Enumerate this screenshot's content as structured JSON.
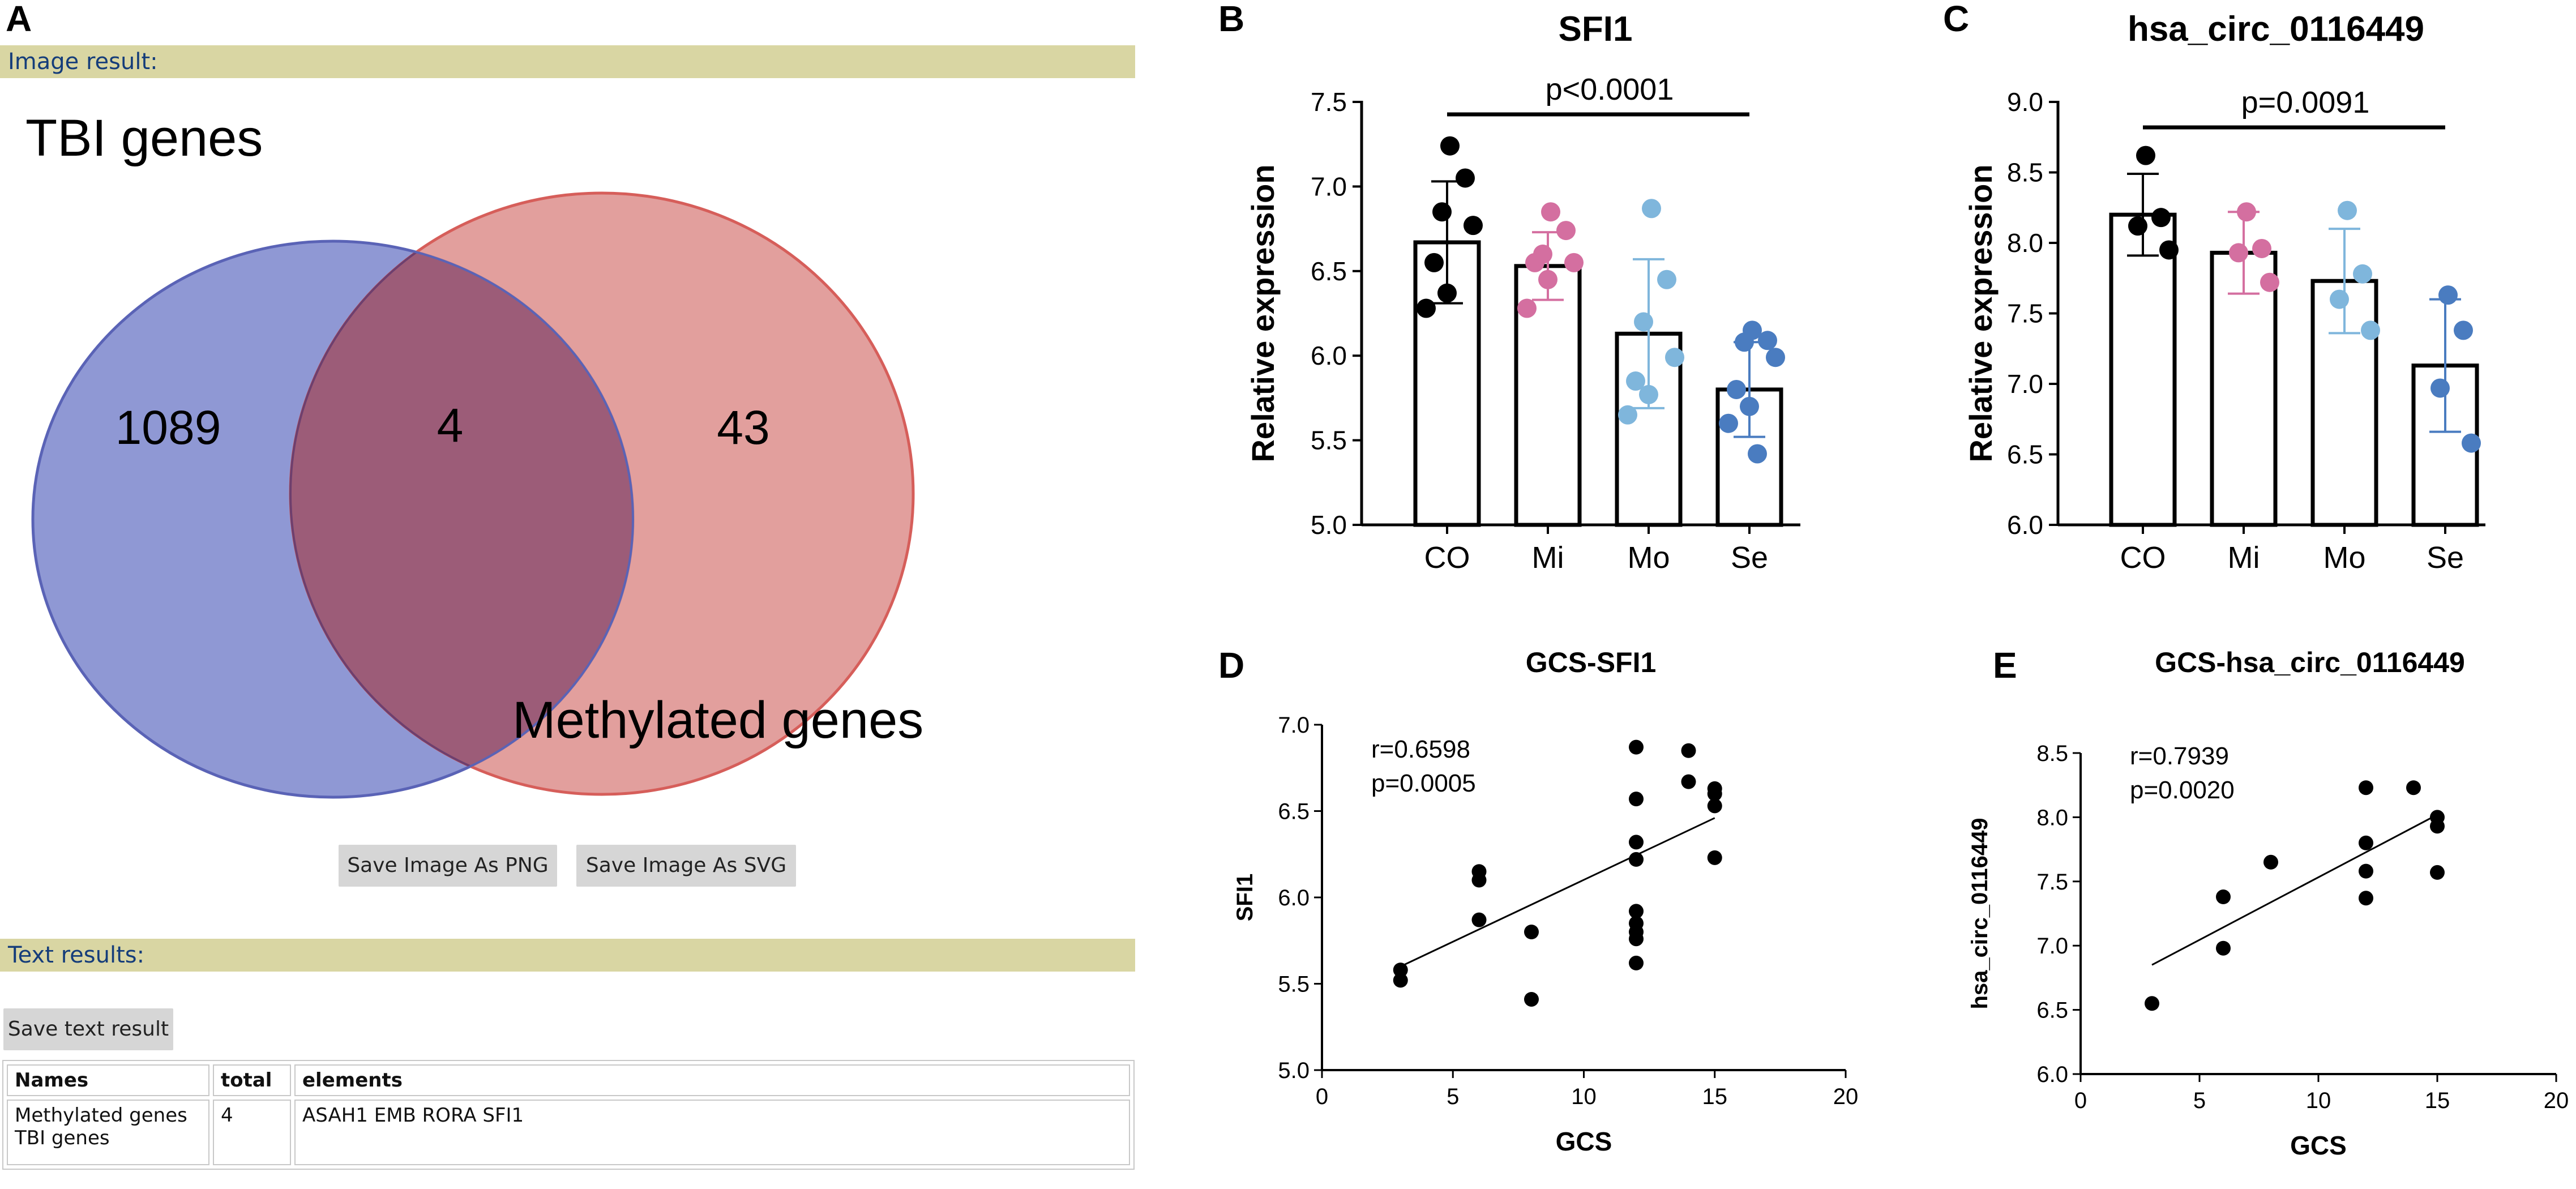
{
  "panel_labels": {
    "a": "A",
    "b": "B",
    "c": "C",
    "d": "D",
    "e": "E"
  },
  "venn": {
    "image_result_label": "Image result:",
    "set_a_label": "TBI genes",
    "set_b_label": "Methylated genes",
    "only_a": "1089",
    "both": "4",
    "only_b": "43",
    "colors": {
      "a": "#7b86cc",
      "b": "#dc8a88"
    },
    "save_png_label": "Save Image As PNG",
    "save_svg_label": "Save Image As SVG",
    "text_results_label": "Text results:",
    "save_text_label": "Save text result",
    "table": {
      "headers": [
        "Names",
        "total",
        "elements"
      ],
      "rows": [
        {
          "names_line1": "Methylated genes",
          "names_line2": "TBI genes",
          "total": "4",
          "elements": "ASAH1 EMB RORA SFI1"
        }
      ]
    }
  },
  "chart_data": [
    {
      "id": "B",
      "type": "bar",
      "title": "SFI1",
      "ylabel": "Relative expression",
      "xlabel": "",
      "categories": [
        "CO",
        "Mi",
        "Mo",
        "Se"
      ],
      "values": [
        6.67,
        6.53,
        6.13,
        5.8
      ],
      "errors": [
        0.36,
        0.2,
        0.44,
        0.28
      ],
      "points": [
        [
          7.24,
          7.05,
          6.85,
          6.77,
          6.55,
          6.37,
          6.28
        ],
        [
          6.85,
          6.74,
          6.6,
          6.55,
          6.55,
          6.45,
          6.28
        ],
        [
          6.87,
          6.45,
          6.2,
          5.99,
          5.85,
          5.77,
          5.65
        ],
        [
          6.15,
          6.09,
          6.08,
          5.99,
          5.8,
          5.7,
          5.6,
          5.42
        ]
      ],
      "point_colors": [
        "#000000",
        "#d46fa0",
        "#7fb6dc",
        "#4a7cc0"
      ],
      "ylim": [
        5.0,
        7.5
      ],
      "yticks": [
        "5.0",
        "5.5",
        "6.0",
        "6.5",
        "7.0",
        "7.5"
      ],
      "annotation": "p<0.0001"
    },
    {
      "id": "C",
      "type": "bar",
      "title": "hsa_circ_0116449",
      "ylabel": "Relative expression",
      "xlabel": "",
      "categories": [
        "CO",
        "Mi",
        "Mo",
        "Se"
      ],
      "values": [
        8.2,
        7.93,
        7.73,
        7.13
      ],
      "errors": [
        0.29,
        0.29,
        0.37,
        0.47
      ],
      "points": [
        [
          8.62,
          8.18,
          8.12,
          7.95
        ],
        [
          8.22,
          7.96,
          7.93,
          7.72
        ],
        [
          8.23,
          7.78,
          7.6,
          7.38
        ],
        [
          7.63,
          7.38,
          6.97,
          6.58
        ]
      ],
      "point_colors": [
        "#000000",
        "#d46fa0",
        "#7fb6dc",
        "#4a7cc0"
      ],
      "ylim": [
        6.0,
        9.0
      ],
      "yticks": [
        "6.0",
        "6.5",
        "7.0",
        "7.5",
        "8.0",
        "8.5",
        "9.0"
      ],
      "annotation": "p=0.0091"
    },
    {
      "id": "D",
      "type": "scatter",
      "title": "GCS-SFI1",
      "xlabel": "GCS",
      "ylabel": "SFI1",
      "xlim": [
        0,
        20
      ],
      "ylim": [
        5.0,
        7.0
      ],
      "xticks": [
        "0",
        "5",
        "10",
        "15",
        "20"
      ],
      "yticks": [
        "5.0",
        "5.5",
        "6.0",
        "6.5",
        "7.0"
      ],
      "x": [
        3,
        3,
        6,
        6,
        6,
        8,
        8,
        12,
        12,
        12,
        12,
        12,
        12,
        12,
        12,
        12,
        14,
        14,
        15,
        15,
        15,
        15
      ],
      "y": [
        5.58,
        5.52,
        6.15,
        6.1,
        5.87,
        5.8,
        5.41,
        6.87,
        6.57,
        6.32,
        6.22,
        5.92,
        5.85,
        5.8,
        5.76,
        5.62,
        6.85,
        6.67,
        6.63,
        6.6,
        6.53,
        6.23
      ],
      "fit": {
        "x": [
          3,
          15
        ],
        "y": [
          5.6,
          6.46
        ]
      },
      "annotation_r": "r=0.6598",
      "annotation_p": "p=0.0005"
    },
    {
      "id": "E",
      "type": "scatter",
      "title": "GCS-hsa_circ_0116449",
      "xlabel": "GCS",
      "ylabel": "hsa_circ_0116449",
      "xlim": [
        0,
        20
      ],
      "ylim": [
        6.0,
        8.5
      ],
      "xticks": [
        "0",
        "5",
        "10",
        "15",
        "20"
      ],
      "yticks": [
        "6.0",
        "6.5",
        "7.0",
        "7.5",
        "8.0",
        "8.5"
      ],
      "x": [
        3,
        6,
        6,
        8,
        12,
        12,
        12,
        12,
        14,
        15,
        15,
        15
      ],
      "y": [
        6.55,
        7.38,
        6.98,
        7.65,
        8.23,
        7.8,
        7.58,
        7.37,
        8.23,
        8.0,
        7.93,
        7.57
      ],
      "fit": {
        "x": [
          3,
          15
        ],
        "y": [
          6.85,
          8.02
        ]
      },
      "annotation_r": "r=0.7939",
      "annotation_p": "p=0.0020"
    }
  ]
}
